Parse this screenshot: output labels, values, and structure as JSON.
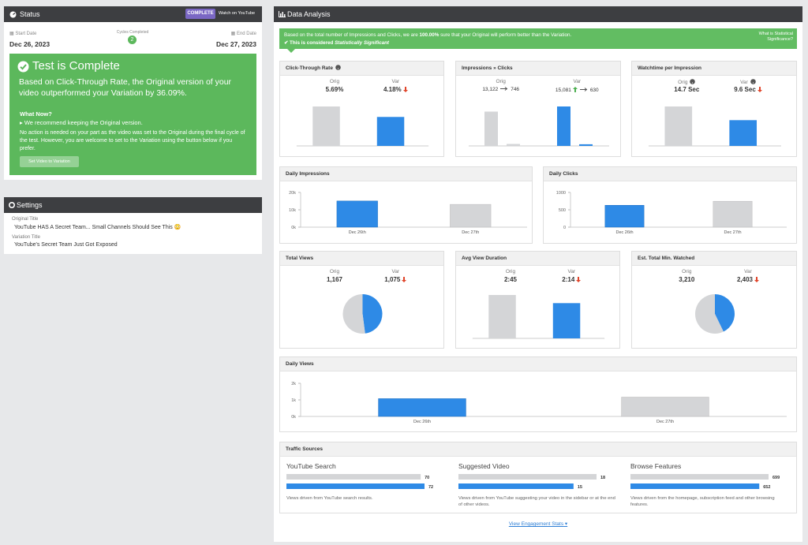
{
  "status": {
    "title": "Status",
    "badge": "COMPLETE",
    "watch": "Watch on YouTube",
    "start_label": "Start Date",
    "start": "Dec 26, 2023",
    "cycles_label": "Cycles Completed",
    "cycles": "2",
    "end_label": "End Date",
    "end": "Dec 27, 2023",
    "heading": "Test is Complete",
    "summary": "Based on Click-Through Rate, the Original version of your video outperformed your Variation by 36.09%.",
    "what_now": "What Now?",
    "bullet": "We recommend keeping the Original version.",
    "note": "No action is needed on your part as the video was set to the Original during the final cycle of the test. However, you are welcome to set to the Variation using the button below if you prefer.",
    "button": "Set Video to Variation"
  },
  "settings": {
    "title": "Settings",
    "orig_label": "Original Title",
    "orig": "YouTube HAS A Secret Team... Small Channels Should See This 😳",
    "var_label": "Variation Title",
    "var": "YouTube's Secret Team Just Got Exposed"
  },
  "analysis": {
    "title": "Data Analysis",
    "orig_label": "Orig",
    "var_label": "Var",
    "banner": {
      "before": "Based on the total number of Impressions and Clicks, we are ",
      "percent": "100.00%",
      "after": " sure that your Original will perform better than the Variation.",
      "sig_before": "This is considered ",
      "sig": "Statistically Significant",
      "link": "What is Statistical Significance?"
    },
    "cards": [
      {
        "title": "Click-Through Rate",
        "values": [
          5.69,
          4.18
        ],
        "value_labels": [
          "5.69%",
          "4.18%"
        ],
        "colors": [
          "#d4d5d7",
          "#2e8ae6"
        ]
      },
      {
        "title": "Watchtime per Impression",
        "values": [
          14.7,
          9.6
        ],
        "value_labels": [
          "14.7 Sec",
          "9.6 Sec"
        ],
        "colors": [
          "#d4d5d7",
          "#2e8ae6"
        ]
      },
      {
        "title": "Avg View Duration",
        "values": [
          165,
          134
        ],
        "value_labels": [
          "2:45",
          "2:14"
        ],
        "colors": [
          "#d4d5d7",
          "#2e8ae6"
        ]
      }
    ],
    "impressions_clicks": {
      "title": "Impressions » Clicks",
      "impressions": [
        13122,
        15081
      ],
      "impressions_labels": [
        "13,122",
        "15,081"
      ],
      "clicks": [
        746,
        630
      ],
      "colors": [
        "#d4d5d7",
        "#2e8ae6"
      ]
    },
    "pies": [
      {
        "title": "Total Views",
        "values": [
          1167,
          1075
        ],
        "value_labels": [
          "1,167",
          "1,075"
        ],
        "colors": [
          "#d4d5d7",
          "#2e8ae6"
        ]
      },
      {
        "title": "Est. Total Min. Watched",
        "values": [
          3210,
          2403
        ],
        "value_labels": [
          "3,210",
          "2,403"
        ],
        "colors": [
          "#d4d5d7",
          "#2e8ae6"
        ]
      }
    ],
    "daily": [
      {
        "title": "Daily Impressions",
        "categories": [
          "Dec 26th",
          "Dec 27th"
        ],
        "values": [
          15081,
          13122
        ],
        "colors": [
          "#2e8ae6",
          "#d4d5d7"
        ],
        "ylim": [
          0,
          20000
        ],
        "yticks": [
          {
            "value": 0,
            "label": "0k"
          },
          {
            "value": 10000,
            "label": "10k"
          },
          {
            "value": 20000,
            "label": "20k"
          }
        ]
      },
      {
        "title": "Daily Clicks",
        "categories": [
          "Dec 26th",
          "Dec 27th"
        ],
        "values": [
          630,
          746
        ],
        "colors": [
          "#2e8ae6",
          "#d4d5d7"
        ],
        "ylim": [
          0,
          1000
        ],
        "yticks": [
          0,
          500,
          1000
        ]
      },
      {
        "title": "Daily Views",
        "categories": [
          "Dec 26th",
          "Dec 27th"
        ],
        "values": [
          1075,
          1167
        ],
        "colors": [
          "#2e8ae6",
          "#d4d5d7"
        ],
        "ylim": [
          0,
          2000
        ],
        "yticks": [
          {
            "value": 0,
            "label": "0k"
          },
          {
            "value": 1000,
            "label": "1k"
          },
          {
            "value": 2000,
            "label": "2k"
          }
        ]
      }
    ],
    "traffic": {
      "title": "Traffic Sources",
      "colors": [
        "#d4d5d7",
        "#2e8ae6"
      ],
      "sources": [
        {
          "name": "YouTube Search",
          "values": [
            70,
            72
          ],
          "description": "Views driven from YouTube search results."
        },
        {
          "name": "Suggested Video",
          "values": [
            18,
            15
          ],
          "description": "Views driven from YouTube suggesting your video in the sidebar or at the end of other videos."
        },
        {
          "name": "Browse Features",
          "values": [
            699,
            652
          ],
          "description": "Views driven from the homepage, subscription feed and other browsing features."
        }
      ]
    },
    "footer": "View Engagement Stats"
  }
}
